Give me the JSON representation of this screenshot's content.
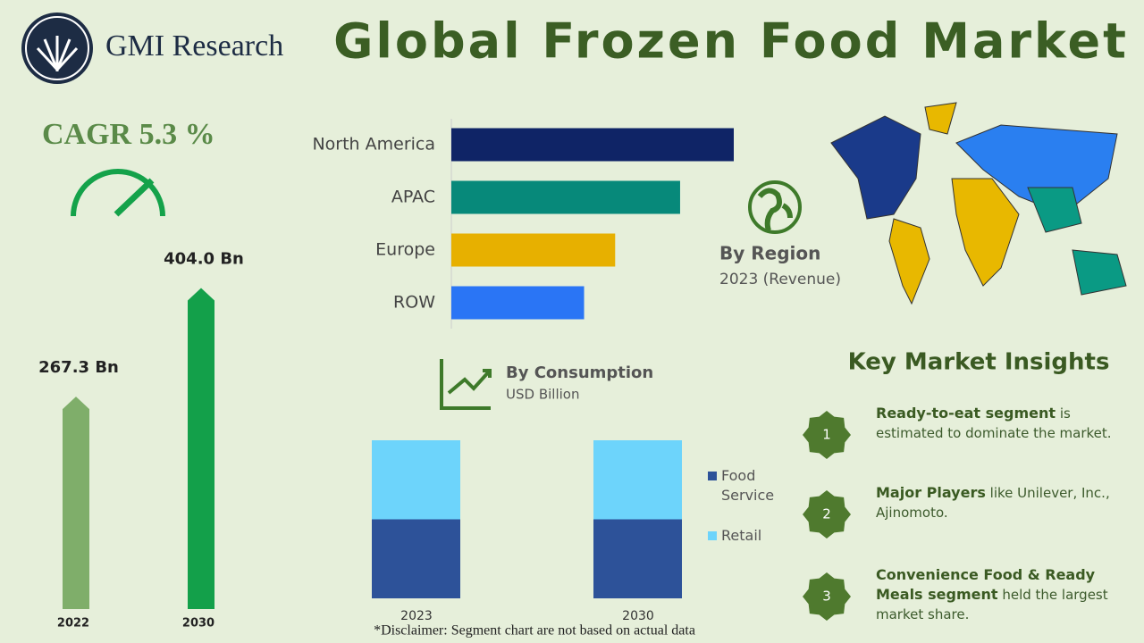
{
  "header": {
    "logo_text": "GMI Research",
    "title": "Global Frozen Food Market"
  },
  "cagr": "CAGR 5.3 %",
  "chart_data": [
    {
      "type": "arrow-bar",
      "categories": [
        "2022",
        "2030"
      ],
      "values": [
        267.3,
        404.0
      ],
      "value_labels": [
        "267.3 Bn",
        "404.0 Bn"
      ],
      "colors": [
        "#7fae6a",
        "#13a04a"
      ]
    },
    {
      "type": "hbar",
      "title": "By Region",
      "subtitle": "2023 (Revenue)",
      "categories": [
        "North America",
        "APAC",
        "Europe",
        "ROW"
      ],
      "values": [
        100,
        81,
        58,
        47
      ],
      "colors": [
        "#0f2466",
        "#07897a",
        "#e7b000",
        "#2a75f5"
      ]
    },
    {
      "type": "stacked-bar",
      "title": "By Consumption",
      "subtitle": "USD Billion",
      "categories": [
        "2023",
        "2030"
      ],
      "series": [
        {
          "name": "Food Service",
          "color": "#2d5299",
          "values": [
            50,
            50
          ]
        },
        {
          "name": "Retail",
          "color": "#6dd4fb",
          "values": [
            50,
            50
          ]
        }
      ]
    }
  ],
  "insights": {
    "title": "Key Market Insights",
    "items": [
      {
        "number": "1",
        "bold": "Ready-to-eat segment",
        "text": "is estimated to dominate the market."
      },
      {
        "number": "2",
        "bold": "Major Players",
        "text": "like Unilever, Inc., Ajinomoto."
      },
      {
        "number": "3",
        "bold": "Convenience Food & Ready Meals segment",
        "text": "held the largest market share."
      }
    ]
  },
  "disclaimer": "*Disclaimer:  Segment chart are not based on actual data"
}
